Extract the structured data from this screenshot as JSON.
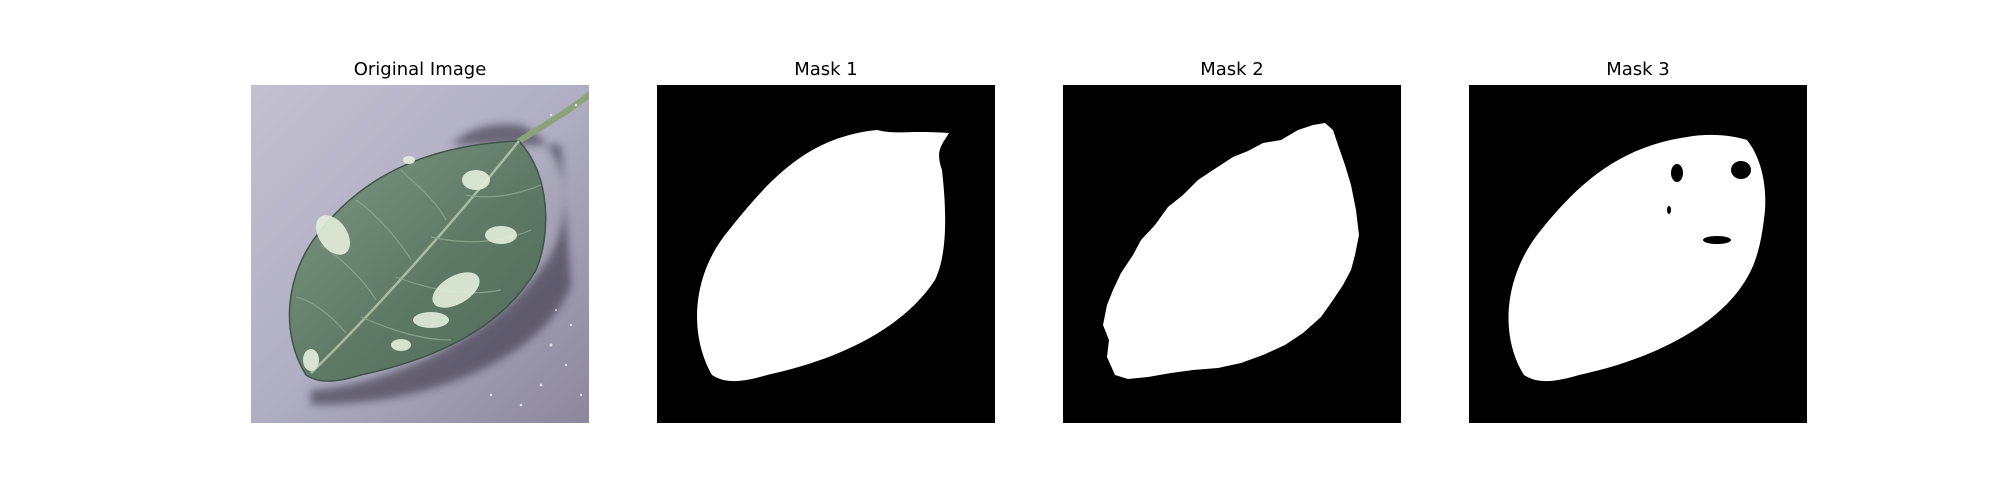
{
  "panels": [
    {
      "title": "Original Image",
      "kind": "photo",
      "content": "green apple leaf with white powdery mildew patches on a gray background"
    },
    {
      "title": "Mask 1",
      "kind": "mask",
      "content": "smooth white leaf silhouette on black"
    },
    {
      "title": "Mask 2",
      "kind": "mask",
      "content": "jagged-edged white leaf silhouette on black"
    },
    {
      "title": "Mask 3",
      "kind": "mask",
      "content": "white leaf silhouette with black holes on black"
    }
  ],
  "colors": {
    "background": "#ffffff",
    "mask_fg": "#ffffff",
    "mask_bg": "#000000",
    "leaf": "#5e7a66",
    "backdrop": "#b0aec2"
  }
}
